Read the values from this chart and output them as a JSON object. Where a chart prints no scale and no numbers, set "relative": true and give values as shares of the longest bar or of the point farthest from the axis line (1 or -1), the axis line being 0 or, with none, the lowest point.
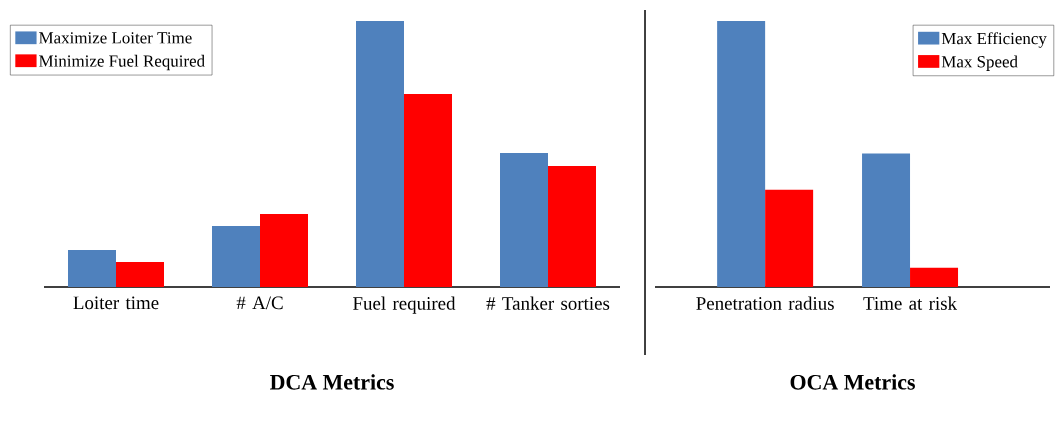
{
  "chart_data": [
    {
      "type": "bar",
      "title": "DCA Metrics",
      "relative": true,
      "legend": "top left",
      "categories": [
        "Loiter time",
        "# A/C",
        "Fuel required",
        "# Tanker sorties"
      ],
      "series": [
        {
          "name": "Maximize Loiter Time",
          "color": "#4f81bd",
          "values": [
            0.139,
            0.229,
            1,
            0.504
          ]
        },
        {
          "name": "Minimize Fuel Required",
          "color": "#ff0000",
          "values": [
            0.094,
            0.274,
            0.726,
            0.455
          ]
        }
      ]
    },
    {
      "type": "bar",
      "title": "OCA Metrics",
      "relative": true,
      "legend": "top right",
      "categories": [
        "Penetration radius",
        "Time at risk"
      ],
      "series": [
        {
          "name": "Max Efficiency",
          "color": "#4f81bd",
          "values": [
            1,
            0.502
          ]
        },
        {
          "name": "Max Speed",
          "color": "#ff0000",
          "values": [
            0.366,
            0.072
          ]
        }
      ]
    }
  ]
}
